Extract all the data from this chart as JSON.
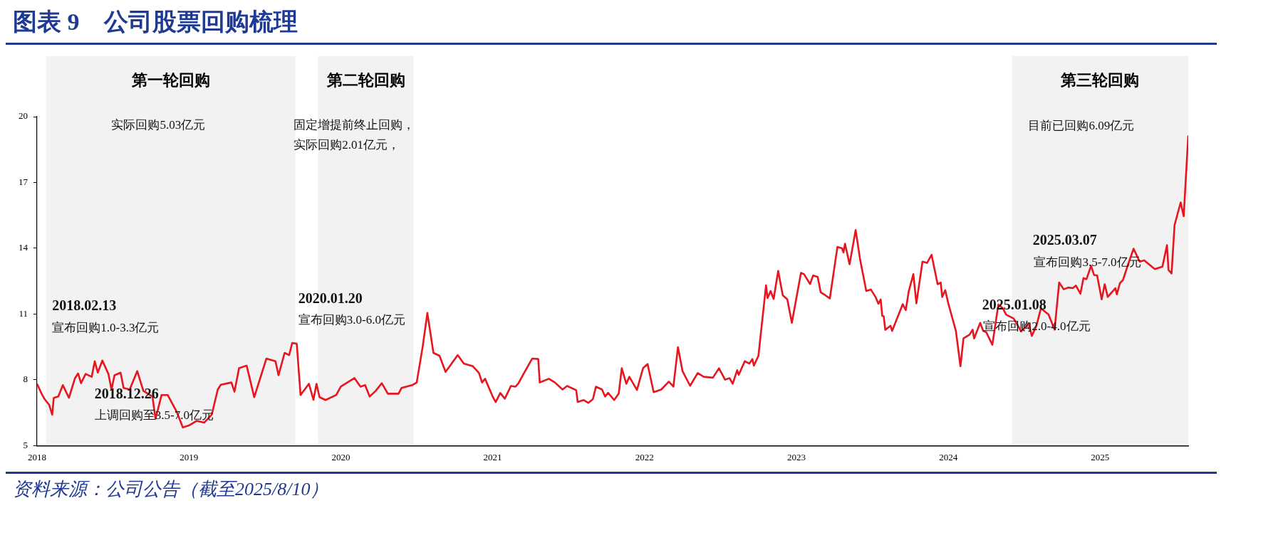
{
  "chart_data": {
    "type": "line",
    "title": "图表 9　公司股票回购梳理",
    "xlim": [
      2018,
      2025.58
    ],
    "xticks": [
      2018,
      2019,
      2020,
      2021,
      2022,
      2023,
      2024,
      2025
    ],
    "ylim": [
      5,
      20
    ],
    "yticks": [
      5,
      8,
      11,
      14,
      17,
      20
    ],
    "grid": false,
    "legend": false,
    "bands": [
      {
        "axis": "x",
        "from": 2018.06,
        "to": 2019.7,
        "label": "第一轮回购",
        "color": "#f2f2f2"
      },
      {
        "axis": "x",
        "from": 2019.85,
        "to": 2020.48,
        "label": "第二轮回购",
        "color": "#f2f2f2"
      },
      {
        "axis": "x",
        "from": 2024.42,
        "to": 2025.58,
        "label": "第三轮回购",
        "color": "#f2f2f2"
      }
    ],
    "series": [
      {
        "color": "#e8141e",
        "x": [
          2018.0,
          2018.03,
          2018.05,
          2018.08,
          2018.1,
          2018.11,
          2018.14,
          2018.17,
          2018.21,
          2018.25,
          2018.27,
          2018.29,
          2018.32,
          2018.36,
          2018.38,
          2018.4,
          2018.43,
          2018.47,
          2018.49,
          2018.51,
          2018.55,
          2018.57,
          2018.61,
          2018.66,
          2018.7,
          2018.76,
          2018.78,
          2018.82,
          2018.86,
          2018.92,
          2018.96,
          2019.0,
          2019.05,
          2019.1,
          2019.15,
          2019.19,
          2019.21,
          2019.28,
          2019.3,
          2019.33,
          2019.38,
          2019.43,
          2019.51,
          2019.57,
          2019.59,
          2019.63,
          2019.66,
          2019.68,
          2019.71,
          2019.735,
          2019.79,
          2019.82,
          2019.84,
          2019.86,
          2019.9,
          2019.97,
          2020.0,
          2020.09,
          2020.13,
          2020.16,
          2020.19,
          2020.23,
          2020.27,
          2020.31,
          2020.38,
          2020.4,
          2020.47,
          2020.5,
          2020.54,
          2020.57,
          2020.61,
          2020.65,
          2020.69,
          2020.77,
          2020.81,
          2020.87,
          2020.91,
          2020.93,
          2020.95,
          2021.0,
          2021.02,
          2021.05,
          2021.08,
          2021.12,
          2021.15,
          2021.17,
          2021.2,
          2021.26,
          2021.3,
          2021.31,
          2021.37,
          2021.41,
          2021.46,
          2021.49,
          2021.55,
          2021.56,
          2021.6,
          2021.63,
          2021.66,
          2021.68,
          2021.72,
          2021.74,
          2021.76,
          2021.8,
          2021.83,
          2021.85,
          2021.88,
          2021.9,
          2021.95,
          2021.99,
          2022.02,
          2022.06,
          2022.11,
          2022.16,
          2022.19,
          2022.22,
          2022.25,
          2022.3,
          2022.35,
          2022.39,
          2022.45,
          2022.49,
          2022.53,
          2022.56,
          2022.58,
          2022.61,
          2022.62,
          2022.66,
          2022.69,
          2022.71,
          2022.72,
          2022.75,
          2022.8,
          2022.81,
          2022.83,
          2022.85,
          2022.88,
          2022.91,
          2022.94,
          2022.97,
          2023.03,
          2023.05,
          2023.09,
          2023.11,
          2023.14,
          2023.16,
          2023.19,
          2023.22,
          2023.27,
          2023.3,
          2023.31,
          2023.32,
          2023.35,
          2023.39,
          2023.42,
          2023.46,
          2023.49,
          2023.52,
          2023.54,
          2023.555,
          2023.565,
          2023.575,
          2023.585,
          2023.62,
          2023.63,
          2023.7,
          2023.72,
          2023.74,
          2023.77,
          2023.79,
          2023.83,
          2023.86,
          2023.89,
          2023.93,
          2023.95,
          2023.96,
          2023.98,
          2024.0,
          2024.05,
          2024.08,
          2024.1,
          2024.14,
          2024.16,
          2024.17,
          2024.21,
          2024.23,
          2024.25,
          2024.29,
          2024.33,
          2024.36,
          2024.38,
          2024.43,
          2024.45,
          2024.48,
          2024.53,
          2024.55,
          2024.58,
          2024.61,
          2024.66,
          2024.7,
          2024.73,
          2024.76,
          2024.79,
          2024.82,
          2024.84,
          2024.87,
          2024.89,
          2024.91,
          2024.94,
          2024.96,
          2024.98,
          2025.01,
          2025.03,
          2025.05,
          2025.1,
          2025.11,
          2025.13,
          2025.15,
          2025.19,
          2025.22,
          2025.26,
          2025.29,
          2025.36,
          2025.41,
          2025.44,
          2025.45,
          2025.47,
          2025.49,
          2025.53,
          2025.55,
          2025.58
        ],
        "values": [
          7.82,
          7.37,
          7.12,
          6.86,
          6.41,
          7.18,
          7.24,
          7.76,
          7.18,
          8.08,
          8.29,
          7.85,
          8.27,
          8.14,
          8.85,
          8.33,
          8.88,
          8.27,
          7.56,
          8.21,
          8.33,
          7.63,
          7.56,
          8.4,
          7.5,
          7.24,
          6.22,
          7.31,
          7.31,
          6.54,
          5.83,
          5.92,
          6.13,
          6.05,
          6.41,
          7.56,
          7.78,
          7.88,
          7.46,
          8.53,
          8.65,
          7.21,
          8.97,
          8.85,
          8.21,
          9.23,
          9.13,
          9.68,
          9.65,
          7.31,
          7.82,
          7.09,
          7.82,
          7.21,
          7.08,
          7.31,
          7.69,
          8.08,
          7.69,
          7.76,
          7.24,
          7.5,
          7.85,
          7.37,
          7.37,
          7.63,
          7.76,
          7.88,
          9.55,
          11.05,
          9.23,
          9.1,
          8.36,
          9.13,
          8.74,
          8.62,
          8.31,
          7.88,
          8.05,
          7.24,
          6.99,
          7.4,
          7.14,
          7.72,
          7.69,
          7.85,
          8.23,
          8.97,
          8.95,
          7.88,
          8.05,
          7.88,
          7.56,
          7.72,
          7.53,
          6.99,
          7.08,
          6.95,
          7.12,
          7.69,
          7.56,
          7.24,
          7.41,
          7.08,
          7.37,
          8.53,
          7.82,
          8.14,
          7.54,
          8.53,
          8.72,
          7.44,
          7.56,
          7.92,
          7.69,
          9.49,
          8.4,
          7.73,
          8.31,
          8.14,
          8.1,
          8.53,
          8.01,
          8.08,
          7.82,
          8.44,
          8.23,
          8.85,
          8.74,
          8.95,
          8.65,
          9.1,
          12.31,
          11.73,
          12.05,
          11.69,
          12.97,
          11.86,
          11.67,
          10.6,
          12.88,
          12.82,
          12.37,
          12.76,
          12.69,
          11.99,
          11.86,
          11.71,
          14.06,
          14.0,
          13.81,
          14.21,
          13.27,
          14.83,
          13.46,
          12.05,
          12.12,
          11.79,
          11.47,
          11.67,
          10.92,
          10.9,
          10.28,
          10.47,
          10.23,
          11.45,
          11.18,
          12.05,
          12.82,
          11.49,
          13.39,
          13.33,
          13.7,
          12.36,
          12.44,
          11.78,
          12.09,
          11.49,
          10.23,
          8.62,
          9.89,
          10.06,
          10.29,
          9.89,
          10.6,
          10.23,
          10.17,
          9.6,
          11.44,
          11.26,
          10.98,
          10.8,
          10.57,
          10.21,
          10.57,
          10.0,
          10.46,
          11.26,
          10.98,
          10.29,
          12.44,
          12.13,
          12.21,
          12.18,
          12.3,
          11.93,
          12.64,
          12.59,
          13.2,
          12.78,
          12.76,
          11.67,
          12.36,
          11.78,
          12.18,
          11.9,
          12.41,
          12.55,
          13.39,
          13.98,
          13.39,
          13.45,
          13.05,
          13.16,
          14.14,
          13.01,
          12.85,
          15.06,
          16.09,
          15.46,
          19.14
        ]
      }
    ],
    "annotations": [
      "实际回购5.03亿元",
      "固定增提前终止回购，",
      "实际回购2.01亿元，",
      "目前已回购6.09亿元",
      "2018.02.13",
      "宣布回购1.0-3.3亿元",
      "2018.12.26",
      "上调回购至3.5-7.0亿元",
      "2020.01.20",
      "宣布回购3.0-6.0亿元",
      "2025.01.08",
      "宣布回购2.0-4.0亿元",
      "2025.03.07",
      "宣布回购3.5-7.0亿元",
      "资料来源：公司公告（截至2025/8/10）"
    ]
  }
}
